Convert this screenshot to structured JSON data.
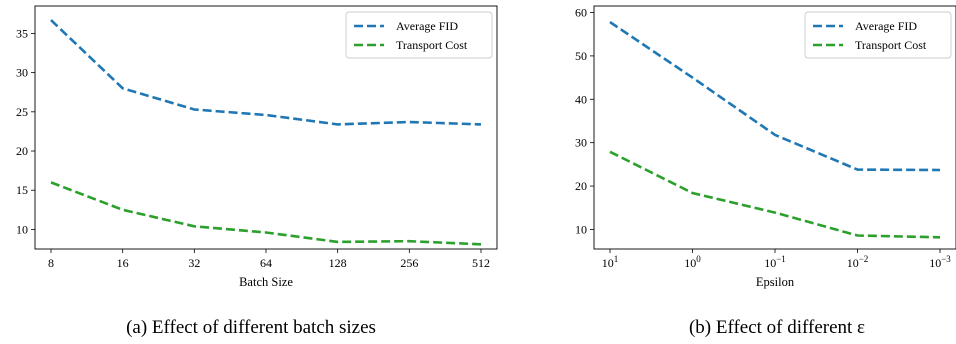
{
  "chart_data": [
    {
      "type": "line",
      "xlabel": "Batch Size",
      "ylabel": "",
      "x_categories": [
        "8",
        "16",
        "32",
        "64",
        "128",
        "256",
        "512"
      ],
      "yticks": [
        10,
        15,
        20,
        25,
        30,
        35
      ],
      "ylim": [
        7.5,
        38.5
      ],
      "series": [
        {
          "name": "Average FID",
          "color": "#1f77b4",
          "values": [
            36.7,
            28.0,
            25.3,
            24.6,
            23.4,
            23.7,
            23.4
          ]
        },
        {
          "name": "Transport Cost",
          "color": "#2ca02c",
          "values": [
            16.0,
            12.5,
            10.4,
            9.6,
            8.4,
            8.5,
            8.1
          ]
        }
      ],
      "legend": "top-right",
      "grid": false,
      "caption": "(a) Effect of different batch sizes"
    },
    {
      "type": "line",
      "xlabel": "Epsilon",
      "ylabel": "",
      "x_categories": [
        "10",
        "10",
        "10",
        "10",
        "10"
      ],
      "x_exponents": [
        "1",
        "0",
        "−1",
        "−2",
        "−3"
      ],
      "yticks": [
        10,
        20,
        30,
        40,
        50,
        60
      ],
      "ylim": [
        5.5,
        61.5
      ],
      "series": [
        {
          "name": "Average FID",
          "color": "#1f77b4",
          "values": [
            57.8,
            45.0,
            31.8,
            23.8,
            23.7
          ]
        },
        {
          "name": "Transport Cost",
          "color": "#2ca02c",
          "values": [
            27.9,
            18.4,
            13.9,
            8.6,
            8.2
          ]
        }
      ],
      "legend": "top-right",
      "grid": false,
      "caption": "(b) Effect of different ε"
    }
  ]
}
